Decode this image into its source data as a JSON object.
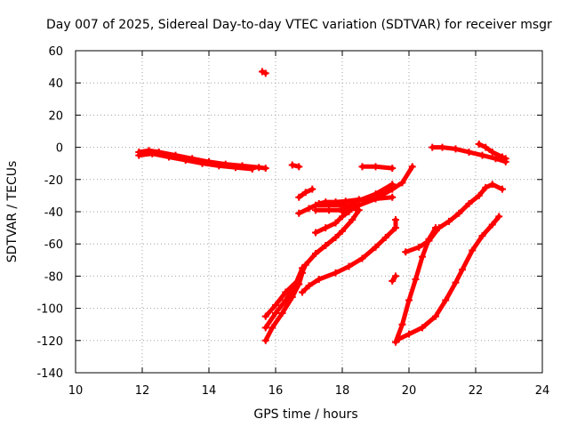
{
  "chart_data": {
    "type": "scatter",
    "title": "Day 007 of 2025, Sidereal Day-to-day VTEC variation (SDTVAR) for receiver msgr",
    "xlabel": "GPS time / hours",
    "ylabel": "SDTVAR / TECUs",
    "xlim": [
      10,
      24
    ],
    "ylim": [
      -140,
      60
    ],
    "xticks": [
      "10",
      "12",
      "14",
      "16",
      "18",
      "20",
      "22",
      "24"
    ],
    "yticks": [
      "-140",
      "-120",
      "-100",
      "-80",
      "-60",
      "-40",
      "-20",
      "0",
      "20",
      "40",
      "60"
    ],
    "grid": true,
    "marker_color": "#ff0000",
    "tracks": [
      {
        "points": [
          [
            11.9,
            -3
          ],
          [
            12.2,
            -2
          ],
          [
            12.5,
            -3
          ],
          [
            13.0,
            -5
          ],
          [
            13.5,
            -7
          ],
          [
            14.0,
            -9
          ],
          [
            14.5,
            -10.5
          ],
          [
            15.0,
            -11.5
          ],
          [
            15.5,
            -12.5
          ],
          [
            15.7,
            -13
          ]
        ]
      },
      {
        "points": [
          [
            11.9,
            -5
          ],
          [
            12.3,
            -4
          ],
          [
            12.8,
            -6
          ],
          [
            13.3,
            -8
          ],
          [
            13.8,
            -10
          ],
          [
            14.3,
            -11.5
          ],
          [
            14.8,
            -12.5
          ],
          [
            15.3,
            -13.5
          ]
        ]
      },
      {
        "points": [
          [
            15.6,
            47
          ],
          [
            15.7,
            46
          ]
        ]
      },
      {
        "points": [
          [
            16.5,
            -11
          ],
          [
            16.7,
            -12
          ]
        ]
      },
      {
        "points": [
          [
            16.7,
            -31
          ],
          [
            16.9,
            -28
          ],
          [
            17.1,
            -26
          ]
        ]
      },
      {
        "points": [
          [
            16.7,
            -41
          ],
          [
            17.0,
            -38
          ],
          [
            17.3,
            -35
          ],
          [
            17.5,
            -34
          ],
          [
            17.8,
            -34
          ],
          [
            18.1,
            -33.5
          ],
          [
            18.5,
            -32.5
          ],
          [
            19.0,
            -32
          ],
          [
            19.5,
            -31
          ]
        ]
      },
      {
        "points": [
          [
            17.2,
            -53
          ],
          [
            17.5,
            -50
          ],
          [
            17.8,
            -47
          ],
          [
            18.0,
            -43
          ],
          [
            18.2,
            -40
          ]
        ]
      },
      {
        "points": [
          [
            17.2,
            -36
          ],
          [
            17.6,
            -36
          ],
          [
            18.0,
            -36
          ],
          [
            18.4,
            -36
          ]
        ]
      },
      {
        "points": [
          [
            17.2,
            -39
          ],
          [
            17.6,
            -39
          ],
          [
            18.0,
            -39
          ],
          [
            18.4,
            -38
          ]
        ]
      },
      {
        "points": [
          [
            18.0,
            -40
          ],
          [
            18.5,
            -36
          ],
          [
            19.0,
            -32
          ],
          [
            19.5,
            -26
          ],
          [
            19.8,
            -22
          ],
          [
            20.1,
            -12
          ]
        ]
      },
      {
        "points": [
          [
            18.0,
            -38
          ],
          [
            18.5,
            -33
          ],
          [
            19.0,
            -29
          ],
          [
            19.5,
            -23
          ]
        ]
      },
      {
        "points": [
          [
            18.6,
            -12
          ],
          [
            19.0,
            -12
          ],
          [
            19.5,
            -13
          ]
        ]
      },
      {
        "points": [
          [
            15.7,
            -105
          ],
          [
            16.0,
            -98
          ],
          [
            16.3,
            -90
          ],
          [
            16.7,
            -82
          ],
          [
            16.9,
            -73
          ],
          [
            17.2,
            -66
          ],
          [
            17.5,
            -61
          ],
          [
            17.8,
            -56
          ],
          [
            18.0,
            -52
          ],
          [
            18.3,
            -45
          ],
          [
            18.5,
            -39
          ]
        ]
      },
      {
        "points": [
          [
            15.7,
            -112
          ],
          [
            16.0,
            -103
          ],
          [
            16.3,
            -95
          ],
          [
            16.6,
            -85
          ],
          [
            16.8,
            -75
          ]
        ]
      },
      {
        "points": [
          [
            15.7,
            -120
          ],
          [
            15.9,
            -112
          ],
          [
            16.2,
            -103
          ],
          [
            16.5,
            -93
          ],
          [
            16.7,
            -85
          ],
          [
            16.8,
            -78
          ]
        ]
      },
      {
        "points": [
          [
            16.8,
            -90
          ],
          [
            17.0,
            -86
          ],
          [
            17.3,
            -82
          ],
          [
            17.8,
            -78
          ],
          [
            18.2,
            -74
          ],
          [
            18.6,
            -69
          ],
          [
            19.0,
            -62
          ],
          [
            19.3,
            -56
          ],
          [
            19.6,
            -50
          ],
          [
            19.6,
            -45
          ]
        ]
      },
      {
        "points": [
          [
            19.5,
            -83
          ],
          [
            19.6,
            -80
          ]
        ]
      },
      {
        "points": [
          [
            19.6,
            -121
          ],
          [
            19.8,
            -110
          ],
          [
            20.0,
            -95
          ],
          [
            20.2,
            -82
          ],
          [
            20.4,
            -68
          ],
          [
            20.6,
            -57
          ],
          [
            20.8,
            -50
          ]
        ]
      },
      {
        "points": [
          [
            19.9,
            -65
          ],
          [
            20.3,
            -62
          ],
          [
            20.6,
            -58
          ],
          [
            20.9,
            -50
          ],
          [
            21.2,
            -46
          ],
          [
            21.5,
            -41
          ],
          [
            21.8,
            -35
          ],
          [
            22.1,
            -30
          ],
          [
            22.3,
            -25
          ],
          [
            22.5,
            -23
          ],
          [
            22.8,
            -26
          ]
        ]
      },
      {
        "points": [
          [
            19.7,
            -119
          ],
          [
            20.0,
            -116
          ],
          [
            20.4,
            -112
          ],
          [
            20.8,
            -105
          ],
          [
            21.1,
            -95
          ],
          [
            21.4,
            -84
          ],
          [
            21.6,
            -76
          ],
          [
            21.9,
            -64
          ],
          [
            22.2,
            -55
          ],
          [
            22.5,
            -48
          ],
          [
            22.7,
            -43
          ]
        ]
      },
      {
        "points": [
          [
            20.7,
            0
          ],
          [
            21.0,
            0
          ],
          [
            21.4,
            -1
          ],
          [
            21.8,
            -3
          ],
          [
            22.2,
            -5
          ],
          [
            22.6,
            -7
          ],
          [
            22.9,
            -9
          ]
        ]
      },
      {
        "points": [
          [
            22.1,
            2
          ],
          [
            22.3,
            0
          ],
          [
            22.5,
            -3
          ],
          [
            22.8,
            -6
          ],
          [
            22.9,
            -7
          ]
        ]
      }
    ]
  }
}
